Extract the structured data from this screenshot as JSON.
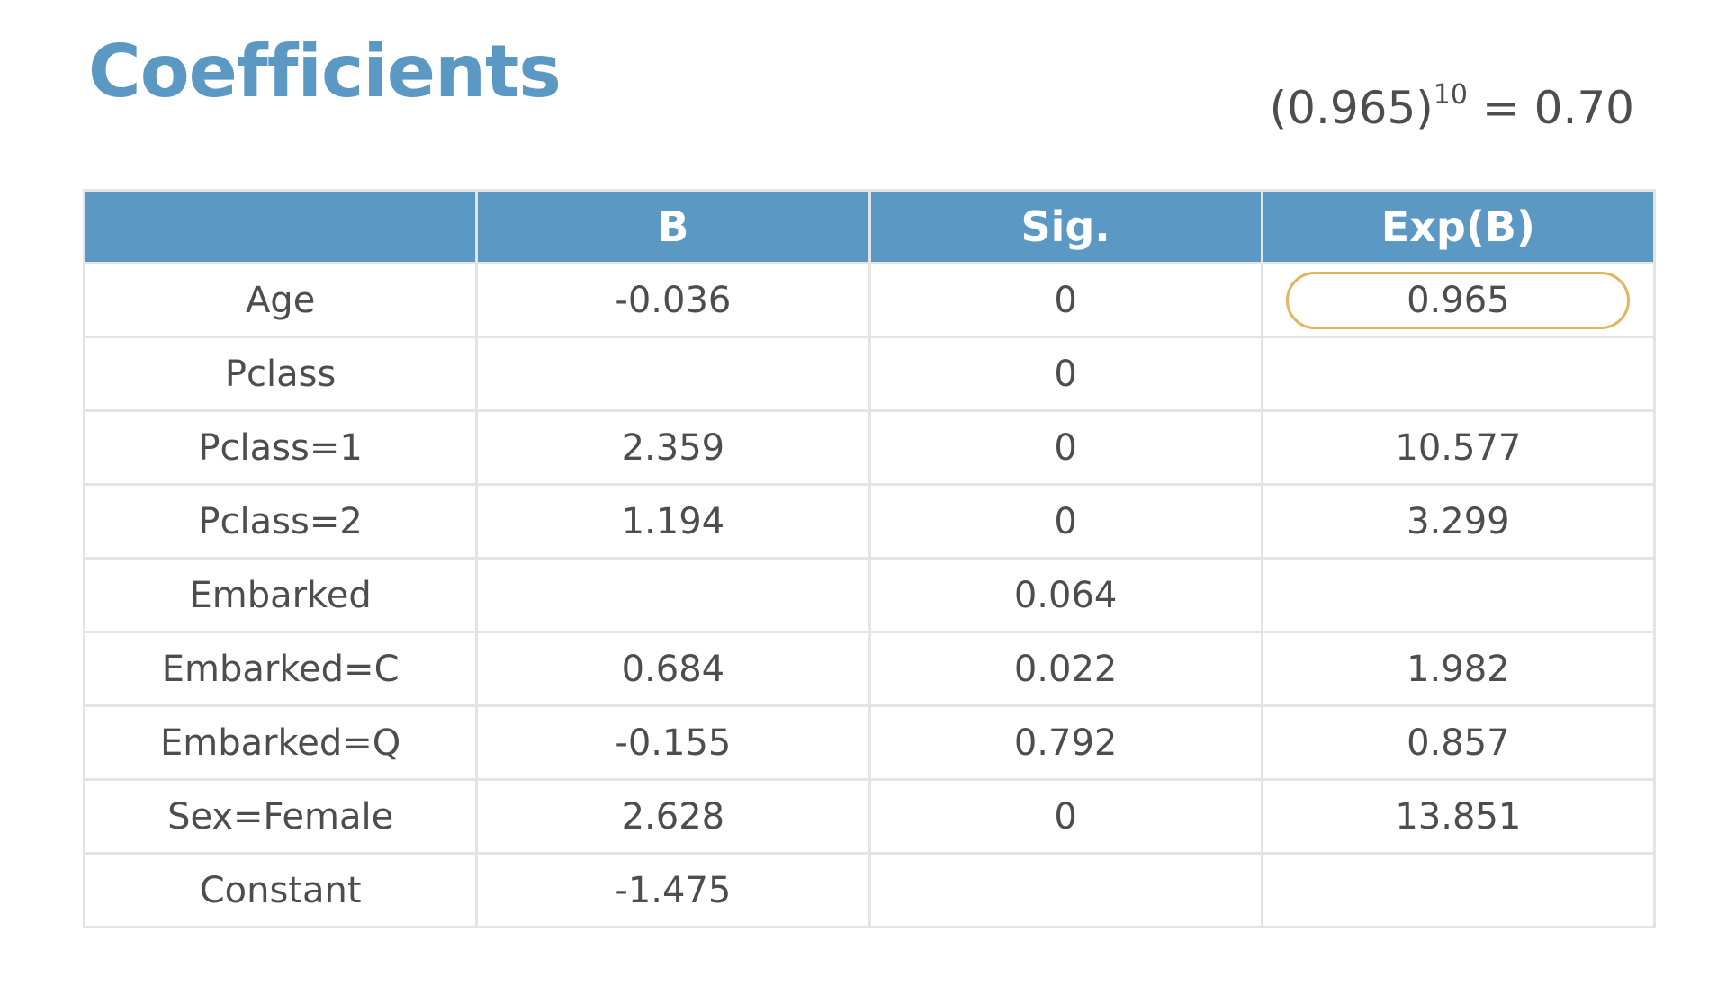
{
  "title": "Coefficients",
  "formula": {
    "base": "(0.965)",
    "exponent": "10",
    "result": " = 0.70"
  },
  "table": {
    "headers": [
      "",
      "B",
      "Sig.",
      "Exp(B)"
    ],
    "rows": [
      {
        "label": "Age",
        "b": "-0.036",
        "sig": "0",
        "expb": "0.965"
      },
      {
        "label": "Pclass",
        "b": "",
        "sig": "0",
        "expb": ""
      },
      {
        "label": "Pclass=1",
        "b": "2.359",
        "sig": "0",
        "expb": "10.577"
      },
      {
        "label": "Pclass=2",
        "b": "1.194",
        "sig": "0",
        "expb": "3.299"
      },
      {
        "label": "Embarked",
        "b": "",
        "sig": "0.064",
        "expb": ""
      },
      {
        "label": "Embarked=C",
        "b": "0.684",
        "sig": "0.022",
        "expb": "1.982"
      },
      {
        "label": "Embarked=Q",
        "b": "-0.155",
        "sig": "0.792",
        "expb": "0.857"
      },
      {
        "label": "Sex=Female",
        "b": "2.628",
        "sig": "0",
        "expb": "13.851"
      },
      {
        "label": "Constant",
        "b": "-1.475",
        "sig": "",
        "expb": ""
      }
    ]
  },
  "colors": {
    "accent": "#5b98c4",
    "highlight": "#e4b45a",
    "border": "#e4e4e4",
    "text": "#4d4d4d"
  }
}
